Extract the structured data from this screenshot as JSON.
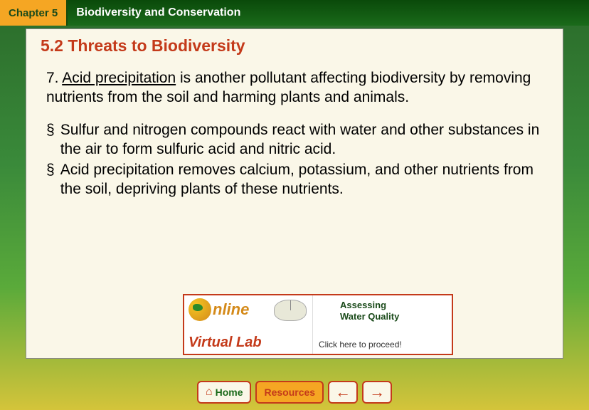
{
  "header": {
    "chapter_label": "Chapter 5",
    "chapter_title": "Biodiversity and Conservation"
  },
  "section": {
    "title": "5.2 Threats to Biodiversity"
  },
  "item": {
    "number": "7.",
    "key_term": "Acid precipitation",
    "rest": " is another pollutant affecting biodiversity by removing nutrients from the soil and harming plants and animals."
  },
  "bullets": [
    "Sulfur and nitrogen compounds react with water and other substances in the air to form sulfuric acid and nitric acid.",
    "Acid precipitation removes calcium, potassium, and other nutrients from the soil, depriving plants of these nutrients."
  ],
  "virtual_lab": {
    "online_text": "nline",
    "lab_text": "Virtual Lab",
    "assess_line1": "Assessing",
    "assess_line2": "Water Quality",
    "click_text": "Click here to proceed!"
  },
  "nav": {
    "home": "Home",
    "resources": "Resources",
    "back": "←",
    "forward": "→"
  },
  "colors": {
    "accent_orange": "#f5a623",
    "accent_red": "#c43a1a",
    "dark_green": "#1a4a1a",
    "panel_bg": "#faf7e8"
  }
}
